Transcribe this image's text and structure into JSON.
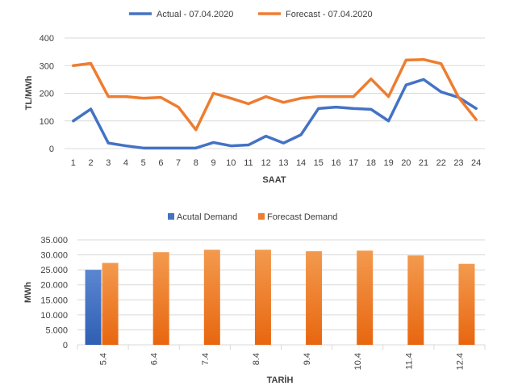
{
  "colors": {
    "actual": "#4472C4",
    "forecast": "#ED7D31",
    "grid": "#D9D9D9",
    "text": "#404040"
  },
  "chart_data": [
    {
      "type": "line",
      "title": "",
      "xlabel": "SAAT",
      "ylabel": "TL/MWh",
      "ylim": [
        0,
        400
      ],
      "yticks": [
        "0",
        "100",
        "200",
        "300",
        "400"
      ],
      "x": [
        "1",
        "2",
        "3",
        "4",
        "5",
        "6",
        "7",
        "8",
        "9",
        "10",
        "11",
        "12",
        "13",
        "14",
        "15",
        "16",
        "17",
        "18",
        "19",
        "20",
        "21",
        "22",
        "23",
        "24"
      ],
      "legend_position": "top",
      "series": [
        {
          "name": "Actual - 07.04.2020",
          "color_key": "actual",
          "values": [
            100,
            143,
            20,
            10,
            2,
            2,
            2,
            2,
            22,
            10,
            13,
            45,
            20,
            50,
            145,
            150,
            145,
            142,
            100,
            230,
            250,
            205,
            185,
            145
          ]
        },
        {
          "name": "Forecast - 07.04.2020",
          "color_key": "forecast",
          "values": [
            300,
            308,
            188,
            188,
            182,
            185,
            150,
            68,
            200,
            182,
            162,
            188,
            167,
            182,
            188,
            188,
            188,
            252,
            188,
            320,
            322,
            307,
            185,
            105
          ]
        }
      ]
    },
    {
      "type": "bar",
      "title": "",
      "xlabel": "TARİH",
      "ylabel": "MWh",
      "ylim": [
        0,
        35000
      ],
      "yticks": [
        "0",
        "5.000",
        "10.000",
        "15.000",
        "20.000",
        "25.000",
        "30.000",
        "35.000"
      ],
      "categories": [
        "5.4",
        "6.4",
        "7.4",
        "8.4",
        "9.4",
        "10.4",
        "11.4",
        "12.4"
      ],
      "legend_position": "top",
      "series": [
        {
          "name": "Acutal Demand",
          "color_key": "actual",
          "values": [
            25000,
            null,
            null,
            null,
            null,
            null,
            null,
            null
          ]
        },
        {
          "name": "Forecast Demand",
          "color_key": "forecast",
          "values": [
            27300,
            30900,
            31700,
            31700,
            31200,
            31400,
            29800,
            27000
          ]
        }
      ]
    }
  ]
}
